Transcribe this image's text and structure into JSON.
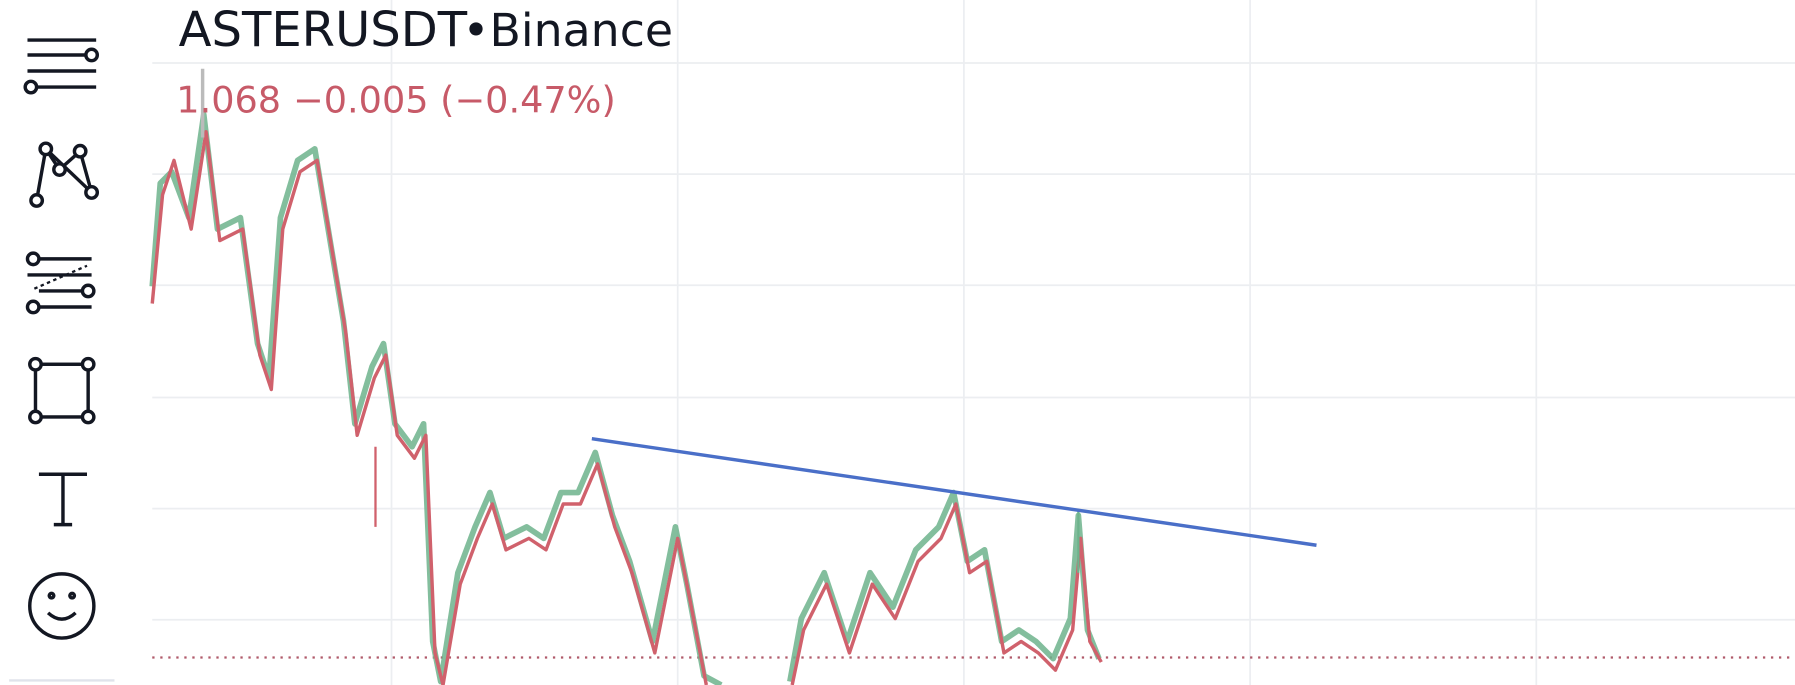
{
  "header": {
    "symbol": "ASTERUSDT",
    "exchange": "•Binance",
    "price": "1.068",
    "change": "−0.005 (−0.47%)"
  }
}
